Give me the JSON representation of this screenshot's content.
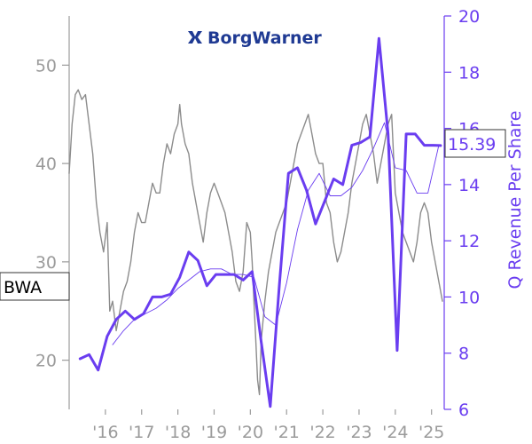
{
  "logo": {
    "text": "BorgWarner",
    "icon": "borgwarner-logo-icon"
  },
  "ticker_label": "BWA",
  "last_value_label": "15.39",
  "colors": {
    "price": "#8c8c8c",
    "revenue": "#6a3df0",
    "axis_left": "#9b9b9b",
    "axis_right": "#6a3df0",
    "ma": "#6a3df0"
  },
  "chart_data": {
    "type": "line",
    "x_tick_labels": [
      "'16",
      "'17",
      "'18",
      "'19",
      "'20",
      "'21",
      "'22",
      "'23",
      "'24",
      "'25"
    ],
    "x_ticks": [
      2016,
      2017,
      2018,
      2019,
      2020,
      2021,
      2022,
      2023,
      2024,
      2025
    ],
    "xlim": [
      2015.0,
      2025.35
    ],
    "y_left": {
      "label": "",
      "ylim": [
        15,
        55
      ],
      "ticks": [
        20,
        30,
        40,
        50
      ]
    },
    "y_right": {
      "label": "Q Revenue Per Share",
      "ylim": [
        6,
        20
      ],
      "ticks": [
        6,
        8,
        10,
        12,
        14,
        16,
        18,
        20
      ]
    },
    "series": [
      {
        "axis": "left",
        "style": "price",
        "x": [
          2015.0,
          2015.08,
          2015.17,
          2015.25,
          2015.35,
          2015.45,
          2015.55,
          2015.65,
          2015.75,
          2015.85,
          2015.95,
          2016.05,
          2016.12,
          2016.2,
          2016.3,
          2016.4,
          2016.5,
          2016.6,
          2016.7,
          2016.8,
          2016.9,
          2017.0,
          2017.1,
          2017.2,
          2017.3,
          2017.4,
          2017.5,
          2017.6,
          2017.7,
          2017.8,
          2017.9,
          2018.0,
          2018.05,
          2018.1,
          2018.2,
          2018.3,
          2018.4,
          2018.5,
          2018.6,
          2018.7,
          2018.8,
          2018.9,
          2019.0,
          2019.1,
          2019.2,
          2019.3,
          2019.4,
          2019.5,
          2019.6,
          2019.7,
          2019.8,
          2019.9,
          2020.0,
          2020.05,
          2020.1,
          2020.15,
          2020.2,
          2020.25,
          2020.3,
          2020.4,
          2020.5,
          2020.6,
          2020.7,
          2020.8,
          2020.9,
          2021.0,
          2021.1,
          2021.2,
          2021.3,
          2021.4,
          2021.5,
          2021.6,
          2021.7,
          2021.8,
          2021.9,
          2022.0,
          2022.1,
          2022.2,
          2022.3,
          2022.4,
          2022.5,
          2022.6,
          2022.7,
          2022.8,
          2022.9,
          2023.0,
          2023.1,
          2023.2,
          2023.3,
          2023.4,
          2023.5,
          2023.6,
          2023.7,
          2023.8,
          2023.9,
          2024.0,
          2024.1,
          2024.2,
          2024.3,
          2024.4,
          2024.5,
          2024.6,
          2024.7,
          2024.8,
          2024.9,
          2025.0,
          2025.1,
          2025.2,
          2025.3
        ],
        "values": [
          39,
          44,
          47,
          47.5,
          46.5,
          47,
          44,
          41,
          36,
          33,
          31,
          34,
          25,
          26,
          23,
          25,
          27,
          28,
          30,
          33,
          35,
          34,
          34,
          36,
          38,
          37,
          37,
          40,
          42,
          41,
          43,
          44,
          46,
          44,
          42,
          41,
          38,
          36,
          34,
          32,
          35,
          37,
          38,
          37,
          36,
          35,
          33,
          31,
          28,
          27,
          29,
          34,
          33,
          30,
          26,
          22,
          18,
          16.5,
          22,
          26,
          29,
          31,
          33,
          34,
          35,
          36,
          38,
          40,
          42,
          43,
          44,
          45,
          43,
          41,
          40,
          40,
          36,
          35,
          32,
          30,
          31,
          33,
          35,
          38,
          40,
          42,
          44,
          45,
          43,
          41,
          38,
          40,
          42,
          44,
          45,
          37,
          35,
          33,
          32,
          31,
          30,
          32,
          35,
          36,
          35,
          32,
          30,
          28,
          26
        ]
      },
      {
        "axis": "right",
        "style": "revenue",
        "x": [
          2015.3,
          2015.55,
          2015.8,
          2016.05,
          2016.3,
          2016.55,
          2016.8,
          2017.05,
          2017.3,
          2017.55,
          2017.8,
          2018.05,
          2018.3,
          2018.55,
          2018.8,
          2019.05,
          2019.3,
          2019.55,
          2019.8,
          2020.05,
          2020.3,
          2020.55,
          2020.8,
          2021.05,
          2021.3,
          2021.55,
          2021.8,
          2022.05,
          2022.3,
          2022.55,
          2022.8,
          2023.05,
          2023.3,
          2023.55,
          2023.8,
          2024.05,
          2024.3,
          2024.55,
          2024.8,
          2025.05,
          2025.25
        ],
        "values": [
          7.8,
          7.95,
          7.4,
          8.6,
          9.2,
          9.5,
          9.2,
          9.4,
          10.0,
          10.0,
          10.1,
          10.7,
          11.6,
          11.3,
          10.4,
          10.8,
          10.8,
          10.8,
          10.6,
          10.9,
          8.4,
          6.1,
          10.4,
          14.4,
          14.6,
          13.8,
          12.6,
          13.4,
          14.2,
          14.0,
          15.4,
          15.5,
          15.7,
          19.2,
          15.8,
          8.1,
          15.8,
          15.8,
          15.4,
          15.4,
          15.39
        ]
      },
      {
        "axis": "right",
        "style": "ma",
        "x": [
          2016.2,
          2016.5,
          2016.8,
          2017.1,
          2017.4,
          2017.7,
          2018.0,
          2018.3,
          2018.6,
          2018.9,
          2019.2,
          2019.5,
          2019.8,
          2020.1,
          2020.4,
          2020.7,
          2021.0,
          2021.3,
          2021.6,
          2021.9,
          2022.2,
          2022.5,
          2022.8,
          2023.1,
          2023.4,
          2023.7,
          2024.0,
          2024.3,
          2024.6,
          2024.9,
          2025.2
        ],
        "values": [
          8.3,
          8.8,
          9.2,
          9.4,
          9.6,
          9.9,
          10.3,
          10.6,
          10.9,
          11.0,
          11.0,
          10.8,
          10.8,
          10.7,
          9.3,
          9.0,
          10.5,
          12.4,
          13.8,
          14.4,
          13.6,
          13.6,
          13.9,
          14.5,
          15.3,
          16.2,
          14.6,
          14.5,
          13.7,
          13.7,
          15.4
        ]
      }
    ]
  }
}
